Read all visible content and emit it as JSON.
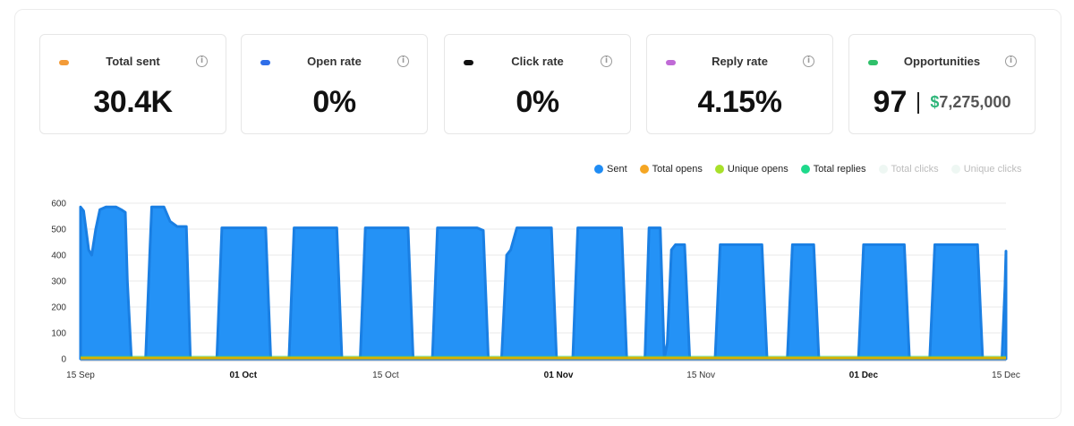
{
  "stats": [
    {
      "label": "Total sent",
      "value": "30.4K",
      "color": "#f39b38"
    },
    {
      "label": "Open rate",
      "value": "0%",
      "color": "#2f6ee8"
    },
    {
      "label": "Click rate",
      "value": "0%",
      "color": "#111111"
    },
    {
      "label": "Reply rate",
      "value": "4.15%",
      "color": "#c06ad6"
    },
    {
      "label": "Opportunities",
      "value": "97",
      "amount_currency": "$",
      "amount": "7,275,000",
      "color": "#2fc06a"
    }
  ],
  "info_icon": "info-icon",
  "legend": [
    {
      "label": "Sent",
      "color": "#1f8cf4",
      "faded": false
    },
    {
      "label": "Total opens",
      "color": "#f5a623",
      "faded": false
    },
    {
      "label": "Unique opens",
      "color": "#a8e02a",
      "faded": false
    },
    {
      "label": "Total replies",
      "color": "#1ed98b",
      "faded": false
    },
    {
      "label": "Total clicks",
      "color": "#eef7f3",
      "faded": true
    },
    {
      "label": "Unique clicks",
      "color": "#eef7f3",
      "faded": true
    }
  ],
  "chart_data": {
    "type": "area",
    "y_ticks": [
      "0",
      "100",
      "200",
      "300",
      "400",
      "500",
      "600"
    ],
    "ylim": [
      0,
      600
    ],
    "x_ticks": [
      {
        "label": "15 Sep",
        "day": 0,
        "bold": false
      },
      {
        "label": "01 Oct",
        "day": 16,
        "bold": true
      },
      {
        "label": "15 Oct",
        "day": 30,
        "bold": false
      },
      {
        "label": "01 Nov",
        "day": 47,
        "bold": true
      },
      {
        "label": "15 Nov",
        "day": 61,
        "bold": false
      },
      {
        "label": "01 Dec",
        "day": 77,
        "bold": true
      },
      {
        "label": "15 Dec",
        "day": 91,
        "bold": false
      }
    ],
    "sent": [
      [
        0,
        585
      ],
      [
        0.3,
        570
      ],
      [
        0.8,
        420
      ],
      [
        1.1,
        400
      ],
      [
        1.5,
        500
      ],
      [
        1.9,
        575
      ],
      [
        2.5,
        585
      ],
      [
        3.5,
        585
      ],
      [
        4.0,
        575
      ],
      [
        4.4,
        565
      ],
      [
        4.6,
        300
      ],
      [
        5.0,
        0
      ],
      [
        6.4,
        0
      ],
      [
        6.8,
        400
      ],
      [
        7.0,
        585
      ],
      [
        8.2,
        585
      ],
      [
        8.8,
        530
      ],
      [
        9.5,
        510
      ],
      [
        10.4,
        510
      ],
      [
        10.8,
        0
      ],
      [
        13.4,
        0
      ],
      [
        13.9,
        505
      ],
      [
        18.2,
        505
      ],
      [
        18.7,
        0
      ],
      [
        20.5,
        0
      ],
      [
        21.0,
        505
      ],
      [
        25.2,
        505
      ],
      [
        25.7,
        0
      ],
      [
        27.5,
        0
      ],
      [
        28.0,
        505
      ],
      [
        32.2,
        505
      ],
      [
        32.7,
        0
      ],
      [
        34.6,
        0
      ],
      [
        35.1,
        505
      ],
      [
        39.0,
        505
      ],
      [
        39.6,
        495
      ],
      [
        40.1,
        0
      ],
      [
        41.4,
        0
      ],
      [
        41.9,
        400
      ],
      [
        42.3,
        420
      ],
      [
        42.9,
        505
      ],
      [
        46.3,
        505
      ],
      [
        46.8,
        0
      ],
      [
        48.4,
        0
      ],
      [
        48.9,
        505
      ],
      [
        53.2,
        505
      ],
      [
        53.7,
        0
      ],
      [
        55.5,
        0
      ],
      [
        55.9,
        505
      ],
      [
        57.0,
        505
      ],
      [
        57.4,
        0
      ],
      [
        57.7,
        60
      ],
      [
        58.1,
        420
      ],
      [
        58.5,
        440
      ],
      [
        59.4,
        440
      ],
      [
        59.9,
        0
      ],
      [
        62.4,
        0
      ],
      [
        62.9,
        440
      ],
      [
        67.0,
        440
      ],
      [
        67.5,
        0
      ],
      [
        69.5,
        0
      ],
      [
        70.0,
        440
      ],
      [
        72.1,
        440
      ],
      [
        72.6,
        0
      ],
      [
        76.5,
        0
      ],
      [
        77.0,
        440
      ],
      [
        81.0,
        440
      ],
      [
        81.5,
        0
      ],
      [
        83.5,
        0
      ],
      [
        84.0,
        440
      ],
      [
        88.2,
        440
      ],
      [
        88.7,
        0
      ],
      [
        90.6,
        0
      ],
      [
        90.9,
        280
      ],
      [
        91.0,
        415
      ]
    ],
    "replies_baseline": 12,
    "series": [
      {
        "name": "Sent",
        "color": "#1f8cf4"
      },
      {
        "name": "Total replies",
        "color": "#1ed98b"
      },
      {
        "name": "Total opens",
        "color": "#f5a623"
      }
    ]
  }
}
